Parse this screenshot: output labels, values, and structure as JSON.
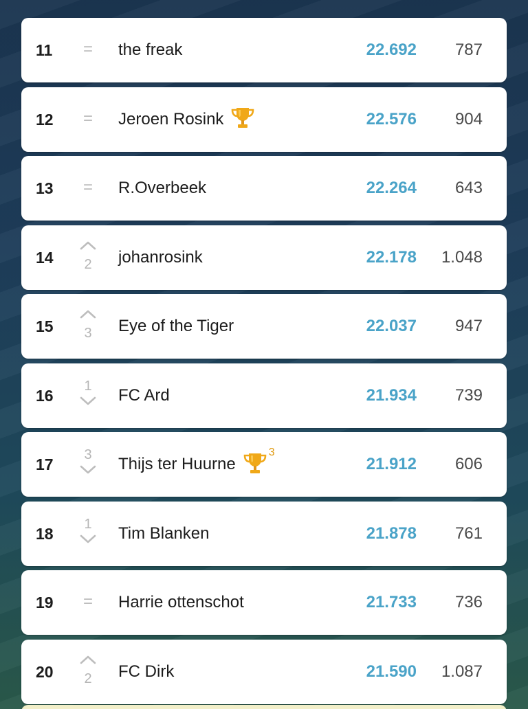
{
  "leaderboard": {
    "rows": [
      {
        "rank": "11",
        "movement": "same",
        "move_symbol": "=",
        "move_amount": "",
        "name": "the freak",
        "trophy": false,
        "trophy_count": "",
        "score": "22.692",
        "points": "787"
      },
      {
        "rank": "12",
        "movement": "same",
        "move_symbol": "=",
        "move_amount": "",
        "name": "Jeroen Rosink",
        "trophy": true,
        "trophy_count": "",
        "score": "22.576",
        "points": "904"
      },
      {
        "rank": "13",
        "movement": "same",
        "move_symbol": "=",
        "move_amount": "",
        "name": "R.Overbeek",
        "trophy": false,
        "trophy_count": "",
        "score": "22.264",
        "points": "643"
      },
      {
        "rank": "14",
        "movement": "up",
        "move_symbol": "",
        "move_amount": "2",
        "name": "johanrosink",
        "trophy": false,
        "trophy_count": "",
        "score": "22.178",
        "points": "1.048"
      },
      {
        "rank": "15",
        "movement": "up",
        "move_symbol": "",
        "move_amount": "3",
        "name": "Eye of the Tiger",
        "trophy": false,
        "trophy_count": "",
        "score": "22.037",
        "points": "947"
      },
      {
        "rank": "16",
        "movement": "down",
        "move_symbol": "",
        "move_amount": "1",
        "name": "FC Ard",
        "trophy": false,
        "trophy_count": "",
        "score": "21.934",
        "points": "739"
      },
      {
        "rank": "17",
        "movement": "down",
        "move_symbol": "",
        "move_amount": "3",
        "name": "Thijs ter Huurne",
        "trophy": true,
        "trophy_count": "3",
        "score": "21.912",
        "points": "606"
      },
      {
        "rank": "18",
        "movement": "down",
        "move_symbol": "",
        "move_amount": "1",
        "name": "Tim Blanken",
        "trophy": false,
        "trophy_count": "",
        "score": "21.878",
        "points": "761"
      },
      {
        "rank": "19",
        "movement": "same",
        "move_symbol": "=",
        "move_amount": "",
        "name": "Harrie ottenschot",
        "trophy": false,
        "trophy_count": "",
        "score": "21.733",
        "points": "736"
      },
      {
        "rank": "20",
        "movement": "up",
        "move_symbol": "",
        "move_amount": "2",
        "name": "FC Dirk",
        "trophy": false,
        "trophy_count": "",
        "score": "21.590",
        "points": "1.087"
      }
    ]
  },
  "colors": {
    "score": "#4aa3c8",
    "trophy": "#f0a818",
    "movement": "#b8b8b8",
    "card": "#ffffff"
  },
  "icons": {
    "up": "chevron-up-icon",
    "down": "chevron-down-icon",
    "trophy": "trophy-icon"
  }
}
